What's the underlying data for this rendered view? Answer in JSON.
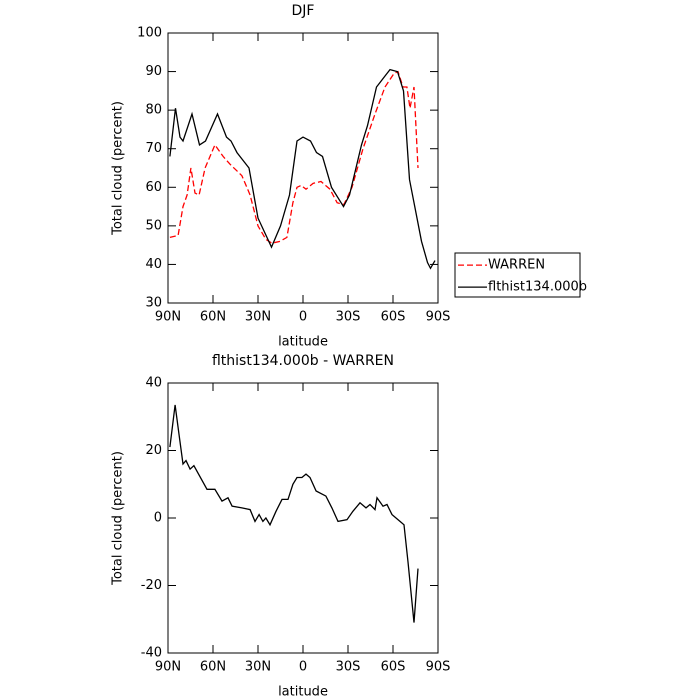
{
  "chart_data": [
    {
      "type": "line",
      "title": "DJF",
      "xlabel": "latitude",
      "ylabel": "Total cloud (percent)",
      "xlim": [
        90,
        -90
      ],
      "xticks": [
        {
          "value": 90,
          "label": "90N"
        },
        {
          "value": 60,
          "label": "60N"
        },
        {
          "value": 30,
          "label": "30N"
        },
        0,
        {
          "value": -30,
          "label": "30S"
        },
        {
          "value": -60,
          "label": "60S"
        },
        {
          "value": -90,
          "label": "90S"
        }
      ],
      "ylim": [
        30,
        100
      ],
      "yticks": [
        30,
        40,
        50,
        60,
        70,
        80,
        90,
        100
      ],
      "legend": "outside-right",
      "series": [
        {
          "name": "WARREN",
          "color": "#ff0000",
          "style": "dashed",
          "x": [
            88.7,
            83.3,
            80,
            77.3,
            74.7,
            72,
            69.3,
            65.3,
            58.7,
            53.3,
            48.7,
            40.7,
            35.3,
            30,
            24.7,
            20.7,
            15.3,
            10.7,
            6.7,
            4,
            1.3,
            -2,
            -6.7,
            -12,
            -18,
            -22.7,
            -27.3,
            -32.7,
            -40,
            -48,
            -54.7,
            -60.7,
            -63.3,
            -66.7,
            -69.3,
            -71.3,
            -74,
            -76.7
          ],
          "values": [
            47,
            47.5,
            55,
            58,
            65,
            58.5,
            58,
            65,
            71,
            68,
            66,
            63,
            58,
            50,
            46.5,
            45.5,
            46,
            47,
            56,
            60,
            60.5,
            59.5,
            61,
            61.5,
            59.5,
            56,
            55.5,
            60,
            70,
            79,
            86,
            89.5,
            90,
            86,
            86,
            80.5,
            86,
            65
          ]
        },
        {
          "name": "flthist134.000b",
          "color": "#000000",
          "style": "solid",
          "x": [
            88.7,
            85,
            82,
            80,
            74,
            69,
            65,
            57,
            51,
            48,
            44,
            36,
            30,
            21,
            15,
            9,
            4,
            0,
            -5,
            -9,
            -13,
            -19,
            -27,
            -31,
            -39,
            -43,
            -49,
            -55,
            -58,
            -63,
            -67,
            -71,
            -75,
            -79,
            -83,
            -85,
            -88
          ],
          "values": [
            68,
            80.5,
            73,
            72,
            79,
            71,
            72,
            79,
            73,
            72,
            69,
            65,
            52,
            44.5,
            50,
            58,
            72,
            73,
            72,
            69,
            68,
            60,
            55,
            58,
            71,
            76,
            86,
            89,
            90.5,
            90,
            85,
            62,
            54,
            46,
            40.5,
            39,
            41
          ]
        }
      ]
    },
    {
      "type": "line",
      "title": "flthist134.000b - WARREN",
      "xlabel": "latitude",
      "ylabel": "Total cloud (percent)",
      "xlim": [
        90,
        -90
      ],
      "xticks": [
        {
          "value": 90,
          "label": "90N"
        },
        {
          "value": 60,
          "label": "60N"
        },
        {
          "value": 30,
          "label": "30N"
        },
        0,
        {
          "value": -30,
          "label": "30S"
        },
        {
          "value": -60,
          "label": "60S"
        },
        {
          "value": -90,
          "label": "90S"
        }
      ],
      "ylim": [
        -40,
        40
      ],
      "yticks": [
        -40,
        -20,
        0,
        20,
        40
      ],
      "series": [
        {
          "color": "#000000",
          "style": "solid",
          "x": [
            88.7,
            85.3,
            82.7,
            80,
            78,
            75.3,
            72.7,
            64,
            58.7,
            54,
            50,
            47.3,
            40.7,
            35.3,
            32,
            29.3,
            26.7,
            24.7,
            22,
            18,
            14,
            10,
            6.7,
            4,
            0.7,
            -2,
            -4.7,
            -8.7,
            -15.3,
            -19.3,
            -23.3,
            -29.3,
            -33.3,
            -38,
            -42,
            -44.7,
            -48,
            -49.3,
            -53.3,
            -56,
            -59.3,
            -64.7,
            -67.3,
            -70,
            -74,
            -76.7
          ],
          "values": [
            21,
            33.5,
            25,
            16,
            17,
            14.5,
            15.5,
            8.5,
            8.5,
            5,
            6,
            3.5,
            3,
            2.5,
            -1,
            1,
            -1,
            0,
            -2,
            2,
            5.5,
            5.5,
            10,
            12,
            12,
            13,
            12,
            8,
            6.5,
            3,
            -1,
            -0.5,
            2,
            4.5,
            3,
            4,
            2.5,
            6,
            3.5,
            4,
            1,
            -1,
            -2,
            -13,
            -31,
            -15
          ]
        }
      ]
    }
  ]
}
